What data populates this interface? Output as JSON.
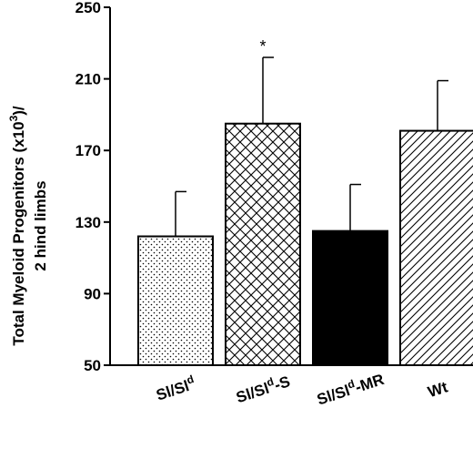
{
  "chart_data": {
    "type": "bar",
    "ylabel_line1": "Total Myeloid Progenitors (x10",
    "ylabel_sup": "3",
    "ylabel_line1_end": ")/",
    "ylabel_line2": "2 hind limbs",
    "ylim": [
      50,
      250
    ],
    "yticks": [
      "50",
      "90",
      "130",
      "170",
      "210",
      "250"
    ],
    "categories": [
      {
        "base": "Sl/Sl",
        "sup": "d",
        "suffix": ""
      },
      {
        "base": "Sl/Sl",
        "sup": "d",
        "suffix": "-S"
      },
      {
        "base": "Sl/Sl",
        "sup": "d",
        "suffix": "-MR"
      },
      {
        "base": "Wt",
        "sup": "",
        "suffix": ""
      }
    ],
    "values": [
      122,
      185,
      125,
      181
    ],
    "errors": [
      25,
      37,
      26,
      28
    ],
    "fills": [
      "dots",
      "crosshatch",
      "solid",
      "diagonal"
    ],
    "annotations": [
      "",
      "*",
      "",
      ""
    ],
    "colors": {
      "ink": "#000000",
      "background": "#ffffff"
    }
  }
}
